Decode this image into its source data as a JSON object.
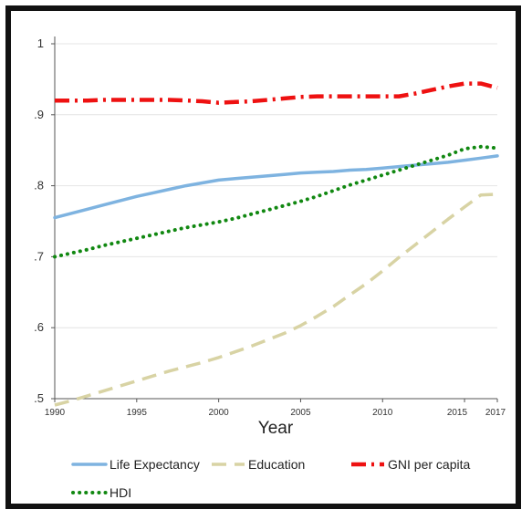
{
  "chart_data": {
    "type": "line",
    "title": "",
    "xlabel": "Year",
    "ylabel": "",
    "xlim": [
      1990,
      2017
    ],
    "ylim": [
      0.5,
      1.0
    ],
    "x_ticks": [
      1990,
      1995,
      2000,
      2005,
      2010,
      2015,
      2017
    ],
    "y_ticks": [
      0.5,
      0.6,
      0.7,
      0.8,
      0.9,
      1.0
    ],
    "y_tick_labels": [
      ".5",
      ".6",
      ".7",
      ".8",
      ".9",
      "1"
    ],
    "grid": true,
    "legend_placement": "bottom",
    "x": [
      1990,
      1991,
      1992,
      1993,
      1994,
      1995,
      1996,
      1997,
      1998,
      1999,
      2000,
      2001,
      2002,
      2003,
      2004,
      2005,
      2006,
      2007,
      2008,
      2009,
      2010,
      2011,
      2012,
      2013,
      2014,
      2015,
      2016,
      2017
    ],
    "series": [
      {
        "name": "Life Expectancy",
        "color": "#7eb3e0",
        "style": "solid",
        "values": [
          0.755,
          0.761,
          0.767,
          0.773,
          0.779,
          0.785,
          0.79,
          0.795,
          0.8,
          0.804,
          0.808,
          0.81,
          0.812,
          0.814,
          0.816,
          0.818,
          0.819,
          0.82,
          0.822,
          0.823,
          0.825,
          0.827,
          0.829,
          0.831,
          0.833,
          0.836,
          0.839,
          0.842
        ]
      },
      {
        "name": "Education",
        "color": "#d8d3a4",
        "style": "dash",
        "values": [
          0.491,
          0.497,
          0.504,
          0.511,
          0.518,
          0.525,
          0.532,
          0.539,
          0.545,
          0.551,
          0.558,
          0.566,
          0.574,
          0.583,
          0.592,
          0.603,
          0.616,
          0.63,
          0.646,
          0.662,
          0.68,
          0.699,
          0.717,
          0.735,
          0.753,
          0.77,
          0.787,
          0.788
        ]
      },
      {
        "name": "GNI per capita",
        "color": "#ee1111",
        "style": "dashdot",
        "values": [
          0.92,
          0.92,
          0.92,
          0.921,
          0.921,
          0.921,
          0.921,
          0.921,
          0.92,
          0.919,
          0.917,
          0.918,
          0.919,
          0.921,
          0.923,
          0.925,
          0.926,
          0.926,
          0.926,
          0.926,
          0.926,
          0.926,
          0.93,
          0.935,
          0.94,
          0.944,
          0.944,
          0.938
        ]
      },
      {
        "name": "HDI",
        "color": "#118811",
        "style": "dot",
        "values": [
          0.7,
          0.705,
          0.71,
          0.716,
          0.721,
          0.726,
          0.731,
          0.736,
          0.741,
          0.745,
          0.749,
          0.754,
          0.76,
          0.766,
          0.772,
          0.778,
          0.785,
          0.793,
          0.801,
          0.808,
          0.815,
          0.822,
          0.829,
          0.836,
          0.843,
          0.852,
          0.855,
          0.853
        ]
      }
    ]
  }
}
